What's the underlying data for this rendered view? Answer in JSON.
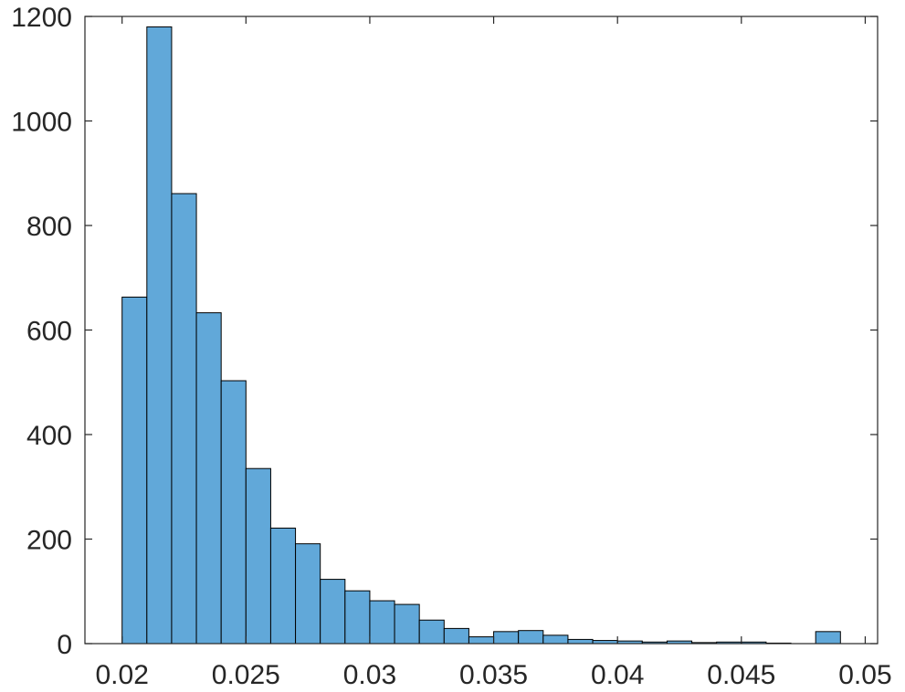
{
  "chart_data": {
    "type": "bar",
    "subtype": "histogram",
    "bin_edges": [
      0.02,
      0.021,
      0.022,
      0.023,
      0.024,
      0.025,
      0.026,
      0.027,
      0.028,
      0.029,
      0.03,
      0.031,
      0.032,
      0.033,
      0.034,
      0.035,
      0.036,
      0.037,
      0.038,
      0.039,
      0.04,
      0.041,
      0.042,
      0.043,
      0.044,
      0.045,
      0.046,
      0.047,
      0.048,
      0.049
    ],
    "values": [
      663,
      1180,
      861,
      633,
      503,
      335,
      221,
      191,
      123,
      101,
      82,
      75,
      45,
      29,
      13,
      23,
      25,
      16,
      8,
      6,
      5,
      3,
      5,
      2,
      3,
      3,
      1,
      0,
      23
    ],
    "xlim": [
      0.0185,
      0.0505
    ],
    "ylim": [
      0,
      1200
    ],
    "xticks": [
      0.02,
      0.025,
      0.03,
      0.035,
      0.04,
      0.045,
      0.05
    ],
    "xtick_labels": [
      "0.02",
      "0.025",
      "0.03",
      "0.035",
      "0.04",
      "0.045",
      "0.05"
    ],
    "yticks": [
      0,
      200,
      400,
      600,
      800,
      1000,
      1200
    ],
    "ytick_labels": [
      "0",
      "200",
      "400",
      "600",
      "800",
      "1000",
      "1200"
    ],
    "bar_color": "#61a8d9",
    "edge_color": "#000000",
    "grid": false,
    "box": true
  }
}
